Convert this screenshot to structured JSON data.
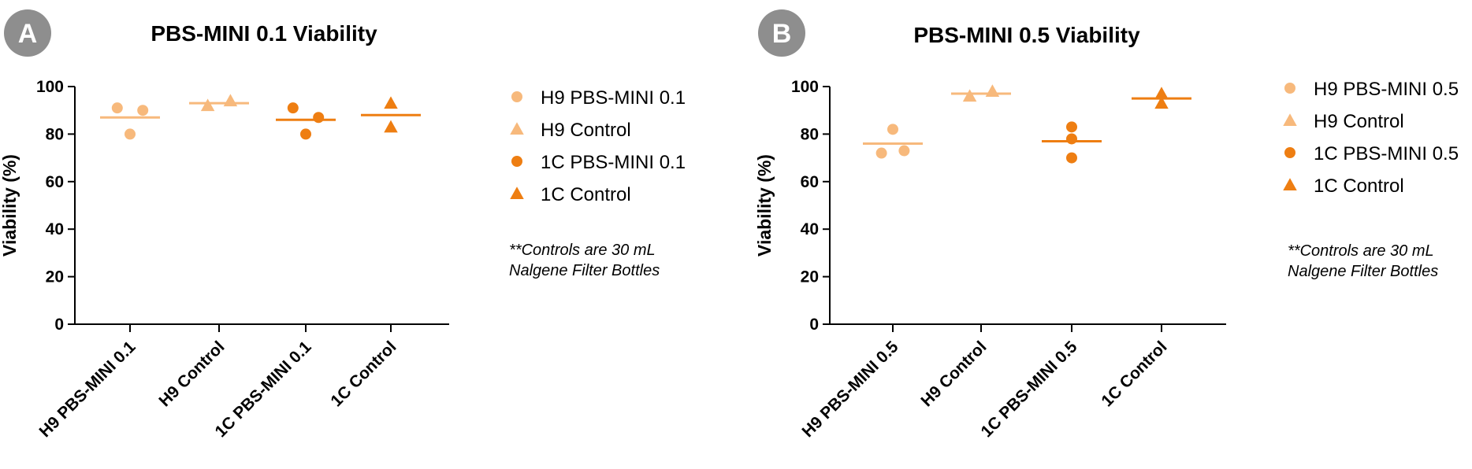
{
  "chart_data": [
    {
      "type": "scatter",
      "panel_label": "A",
      "title": "PBS-MINI 0.1 Viability",
      "ylabel": "Viability (%)",
      "xlabel": "",
      "ylim": [
        0,
        100
      ],
      "yticks": [
        0,
        20,
        40,
        60,
        80,
        100
      ],
      "categories": [
        "H9 PBS-MINI 0.1",
        "H9 Control",
        "1C PBS-MINI 0.1",
        "1C Control"
      ],
      "series": [
        {
          "name": "H9 PBS-MINI 0.1",
          "category": 0,
          "marker": "circle",
          "color": "#F7B97C",
          "points": [
            {
              "offset": -0.45,
              "y": 91
            },
            {
              "offset": 0.0,
              "y": 80
            },
            {
              "offset": 0.45,
              "y": 90
            }
          ],
          "mean": 87
        },
        {
          "name": "H9 Control",
          "category": 1,
          "marker": "triangle",
          "color": "#F7B97C",
          "points": [
            {
              "offset": -0.4,
              "y": 92
            },
            {
              "offset": 0.4,
              "y": 94
            }
          ],
          "mean": 93
        },
        {
          "name": "1C PBS-MINI 0.1",
          "category": 2,
          "marker": "circle",
          "color": "#EE7E12",
          "points": [
            {
              "offset": -0.45,
              "y": 91
            },
            {
              "offset": 0.0,
              "y": 80
            },
            {
              "offset": 0.45,
              "y": 87
            }
          ],
          "mean": 86
        },
        {
          "name": "1C Control",
          "category": 3,
          "marker": "triangle",
          "color": "#EE7E12",
          "points": [
            {
              "offset": 0.0,
              "y": 93
            },
            {
              "offset": 0.0,
              "y": 83
            }
          ],
          "mean": 88
        }
      ],
      "legend": [
        "H9 PBS-MINI 0.1",
        "H9 Control",
        "1C PBS-MINI 0.1",
        "1C Control"
      ],
      "note": [
        "**Controls are 30 mL",
        "Nalgene Filter Bottles"
      ]
    },
    {
      "type": "scatter",
      "panel_label": "B",
      "title": "PBS-MINI 0.5 Viability",
      "ylabel": "Viability (%)",
      "xlabel": "",
      "ylim": [
        0,
        100
      ],
      "yticks": [
        0,
        20,
        40,
        60,
        80,
        100
      ],
      "categories": [
        "H9 PBS-MINI 0.5",
        "H9 Control",
        "1C PBS-MINI 0.5",
        "1C Control"
      ],
      "series": [
        {
          "name": "H9 PBS-MINI 0.5",
          "category": 0,
          "marker": "circle",
          "color": "#F7B97C",
          "points": [
            {
              "offset": -0.4,
              "y": 72
            },
            {
              "offset": 0.0,
              "y": 82
            },
            {
              "offset": 0.4,
              "y": 73
            }
          ],
          "mean": 76
        },
        {
          "name": "H9 Control",
          "category": 1,
          "marker": "triangle",
          "color": "#F7B97C",
          "points": [
            {
              "offset": -0.4,
              "y": 96
            },
            {
              "offset": 0.4,
              "y": 98
            }
          ],
          "mean": 97
        },
        {
          "name": "1C PBS-MINI 0.5",
          "category": 2,
          "marker": "circle",
          "color": "#EE7E12",
          "points": [
            {
              "offset": 0.0,
              "y": 83
            },
            {
              "offset": 0.0,
              "y": 78
            },
            {
              "offset": 0.0,
              "y": 70
            }
          ],
          "mean": 77
        },
        {
          "name": "1C Control",
          "category": 3,
          "marker": "triangle",
          "color": "#EE7E12",
          "points": [
            {
              "offset": 0.0,
              "y": 97
            },
            {
              "offset": 0.0,
              "y": 93
            }
          ],
          "mean": 95
        }
      ],
      "legend": [
        "H9 PBS-MINI 0.5",
        "H9 Control",
        "1C PBS-MINI 0.5",
        "1C Control"
      ],
      "note": [
        "**Controls are 30 mL",
        "Nalgene Filter Bottles"
      ]
    }
  ],
  "colors": {
    "light_orange": "#F7B97C",
    "dark_orange": "#EE7E12",
    "badge": "#8E8E8E",
    "axis": "#000000"
  }
}
